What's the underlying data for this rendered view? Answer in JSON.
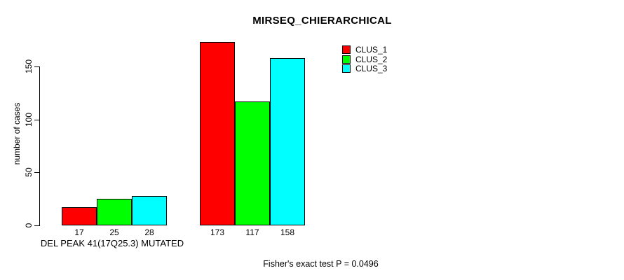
{
  "chart_data": {
    "type": "bar",
    "title": "MIRSEQ_CHIERARCHICAL",
    "xlabel": "DEL PEAK 41(17Q25.3) MUTATED",
    "ylabel": "number of cases",
    "annotation": "Fisher's exact test P = 0.0496",
    "categories": [
      "DEL PEAK 41(17Q25.3) MUTATED",
      ""
    ],
    "series": [
      {
        "name": "CLUS_1",
        "color": "#ff0000",
        "values": [
          17,
          173
        ]
      },
      {
        "name": "CLUS_2",
        "color": "#00ff00",
        "values": [
          25,
          117
        ]
      },
      {
        "name": "CLUS_3",
        "color": "#00ffff",
        "values": [
          28,
          158
        ]
      }
    ],
    "bar_value_labels": [
      [
        17,
        25,
        28
      ],
      [
        173,
        117,
        158
      ]
    ],
    "yticks": [
      0,
      50,
      100,
      150
    ],
    "ylim": [
      0,
      175
    ],
    "grid": false,
    "legend_position": "top-right",
    "colors": {
      "background": "#ffffff",
      "axis": "#000000",
      "text": "#000000"
    }
  }
}
